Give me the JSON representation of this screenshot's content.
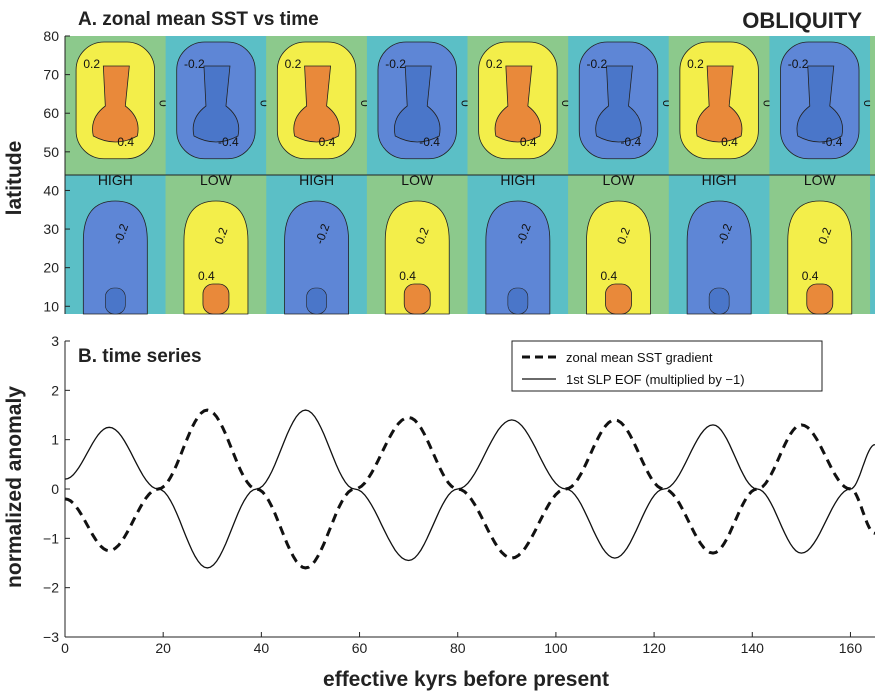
{
  "figure": {
    "label": "OBLIQUITY",
    "xlabel": "effective kyrs before present"
  },
  "colors": {
    "teal": "#5bbfc6",
    "green": "#8cc98c",
    "yellow": "#f3ee4a",
    "orange": "#e9893a",
    "blue": "#4a76c9",
    "lightblue": "#5e86d6"
  },
  "chart_data": [
    {
      "type": "heatmap",
      "title": "A. zonal mean SST vs time",
      "ylabel": "latitude",
      "xlim": [
        0,
        165
      ],
      "ylim": [
        8,
        80
      ],
      "yticks": [
        10,
        20,
        30,
        40,
        50,
        60,
        70,
        80
      ],
      "phase_labels": [
        "HIGH",
        "LOW",
        "HIGH",
        "LOW",
        "HIGH",
        "LOW",
        "HIGH",
        "LOW"
      ],
      "contour_levels": [
        "-0.4",
        "-0.2",
        "0",
        "0.2",
        "0.4"
      ],
      "high_latitude_band": [
        44,
        80
      ],
      "low_latitude_band": [
        8,
        44
      ]
    },
    {
      "type": "line",
      "title": "B. time series",
      "ylabel": "normalized anomaly",
      "xlim": [
        0,
        165
      ],
      "ylim": [
        -3,
        3
      ],
      "xticks": [
        0,
        20,
        40,
        60,
        80,
        100,
        120,
        140,
        160
      ],
      "yticks": [
        -3,
        -2,
        -1,
        0,
        1,
        2,
        3
      ],
      "series": [
        {
          "name": "zonal mean SST gradient",
          "style": "dashed",
          "x": [
            0,
            9,
            19,
            29,
            39,
            49,
            59,
            70,
            80,
            91,
            102,
            112,
            122,
            132,
            141,
            150,
            160,
            165
          ],
          "y": [
            -0.2,
            -1.25,
            0,
            1.6,
            0,
            -1.6,
            0,
            1.45,
            0,
            -1.4,
            0,
            1.4,
            0,
            -1.3,
            0,
            1.3,
            0,
            -0.9
          ]
        },
        {
          "name": "1st SLP EOF (multiplied by −1)",
          "style": "solid",
          "x": [
            0,
            9,
            19,
            29,
            39,
            49,
            59,
            70,
            80,
            91,
            102,
            112,
            122,
            132,
            141,
            150,
            160,
            165
          ],
          "y": [
            0.2,
            1.25,
            0,
            -1.6,
            0,
            1.6,
            0,
            -1.45,
            0,
            1.4,
            0,
            -1.4,
            0,
            1.3,
            0,
            -1.3,
            0,
            0.9
          ]
        }
      ]
    }
  ]
}
